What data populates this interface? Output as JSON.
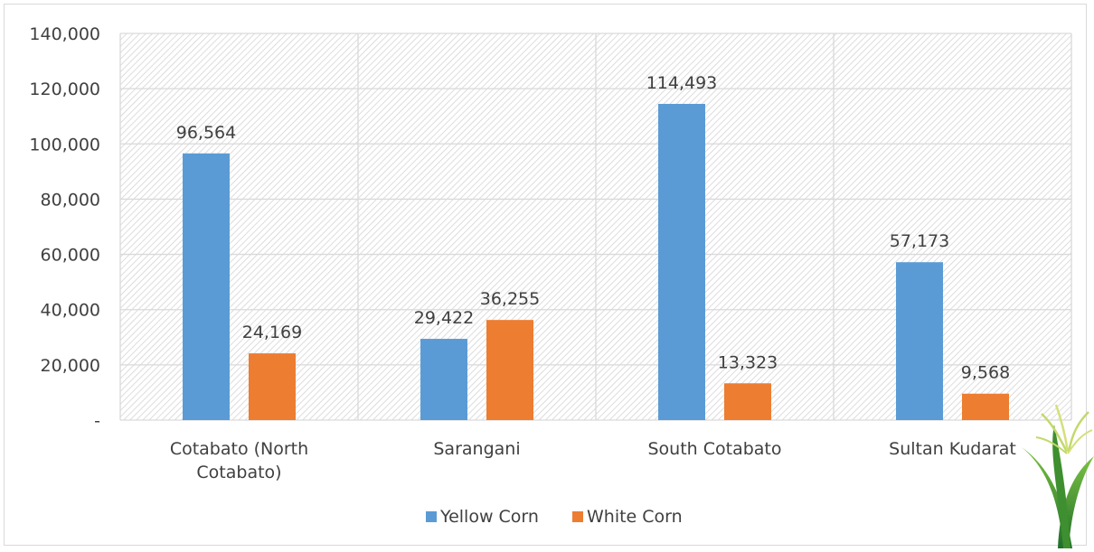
{
  "chart_data": {
    "type": "bar",
    "categories": [
      [
        "Cotabato (North",
        "Cotabato)"
      ],
      [
        "Sarangani"
      ],
      [
        "South Cotabato"
      ],
      [
        "Sultan Kudarat"
      ]
    ],
    "series": [
      {
        "name": "Yellow Corn",
        "color": "#5b9bd5",
        "values": [
          96564,
          29422,
          114493,
          57173
        ],
        "labels": [
          "96,564",
          "29,422",
          "114,493",
          "57,173"
        ]
      },
      {
        "name": "White Corn",
        "color": "#ed7d31",
        "values": [
          24169,
          36255,
          13323,
          9568
        ],
        "labels": [
          "24,169",
          "36,255",
          "13,323",
          "9,568"
        ]
      }
    ],
    "ylim": [
      0,
      140000
    ],
    "yticks": [
      0,
      20000,
      40000,
      60000,
      80000,
      100000,
      120000,
      140000
    ],
    "ytick_labels": [
      "-",
      "20,000",
      "40,000",
      "60,000",
      "80,000",
      "100,000",
      "120,000",
      "140,000"
    ],
    "grid": true,
    "plot_background": "hatched",
    "legend_position": "bottom",
    "decoration": "corn-plant-icon"
  }
}
